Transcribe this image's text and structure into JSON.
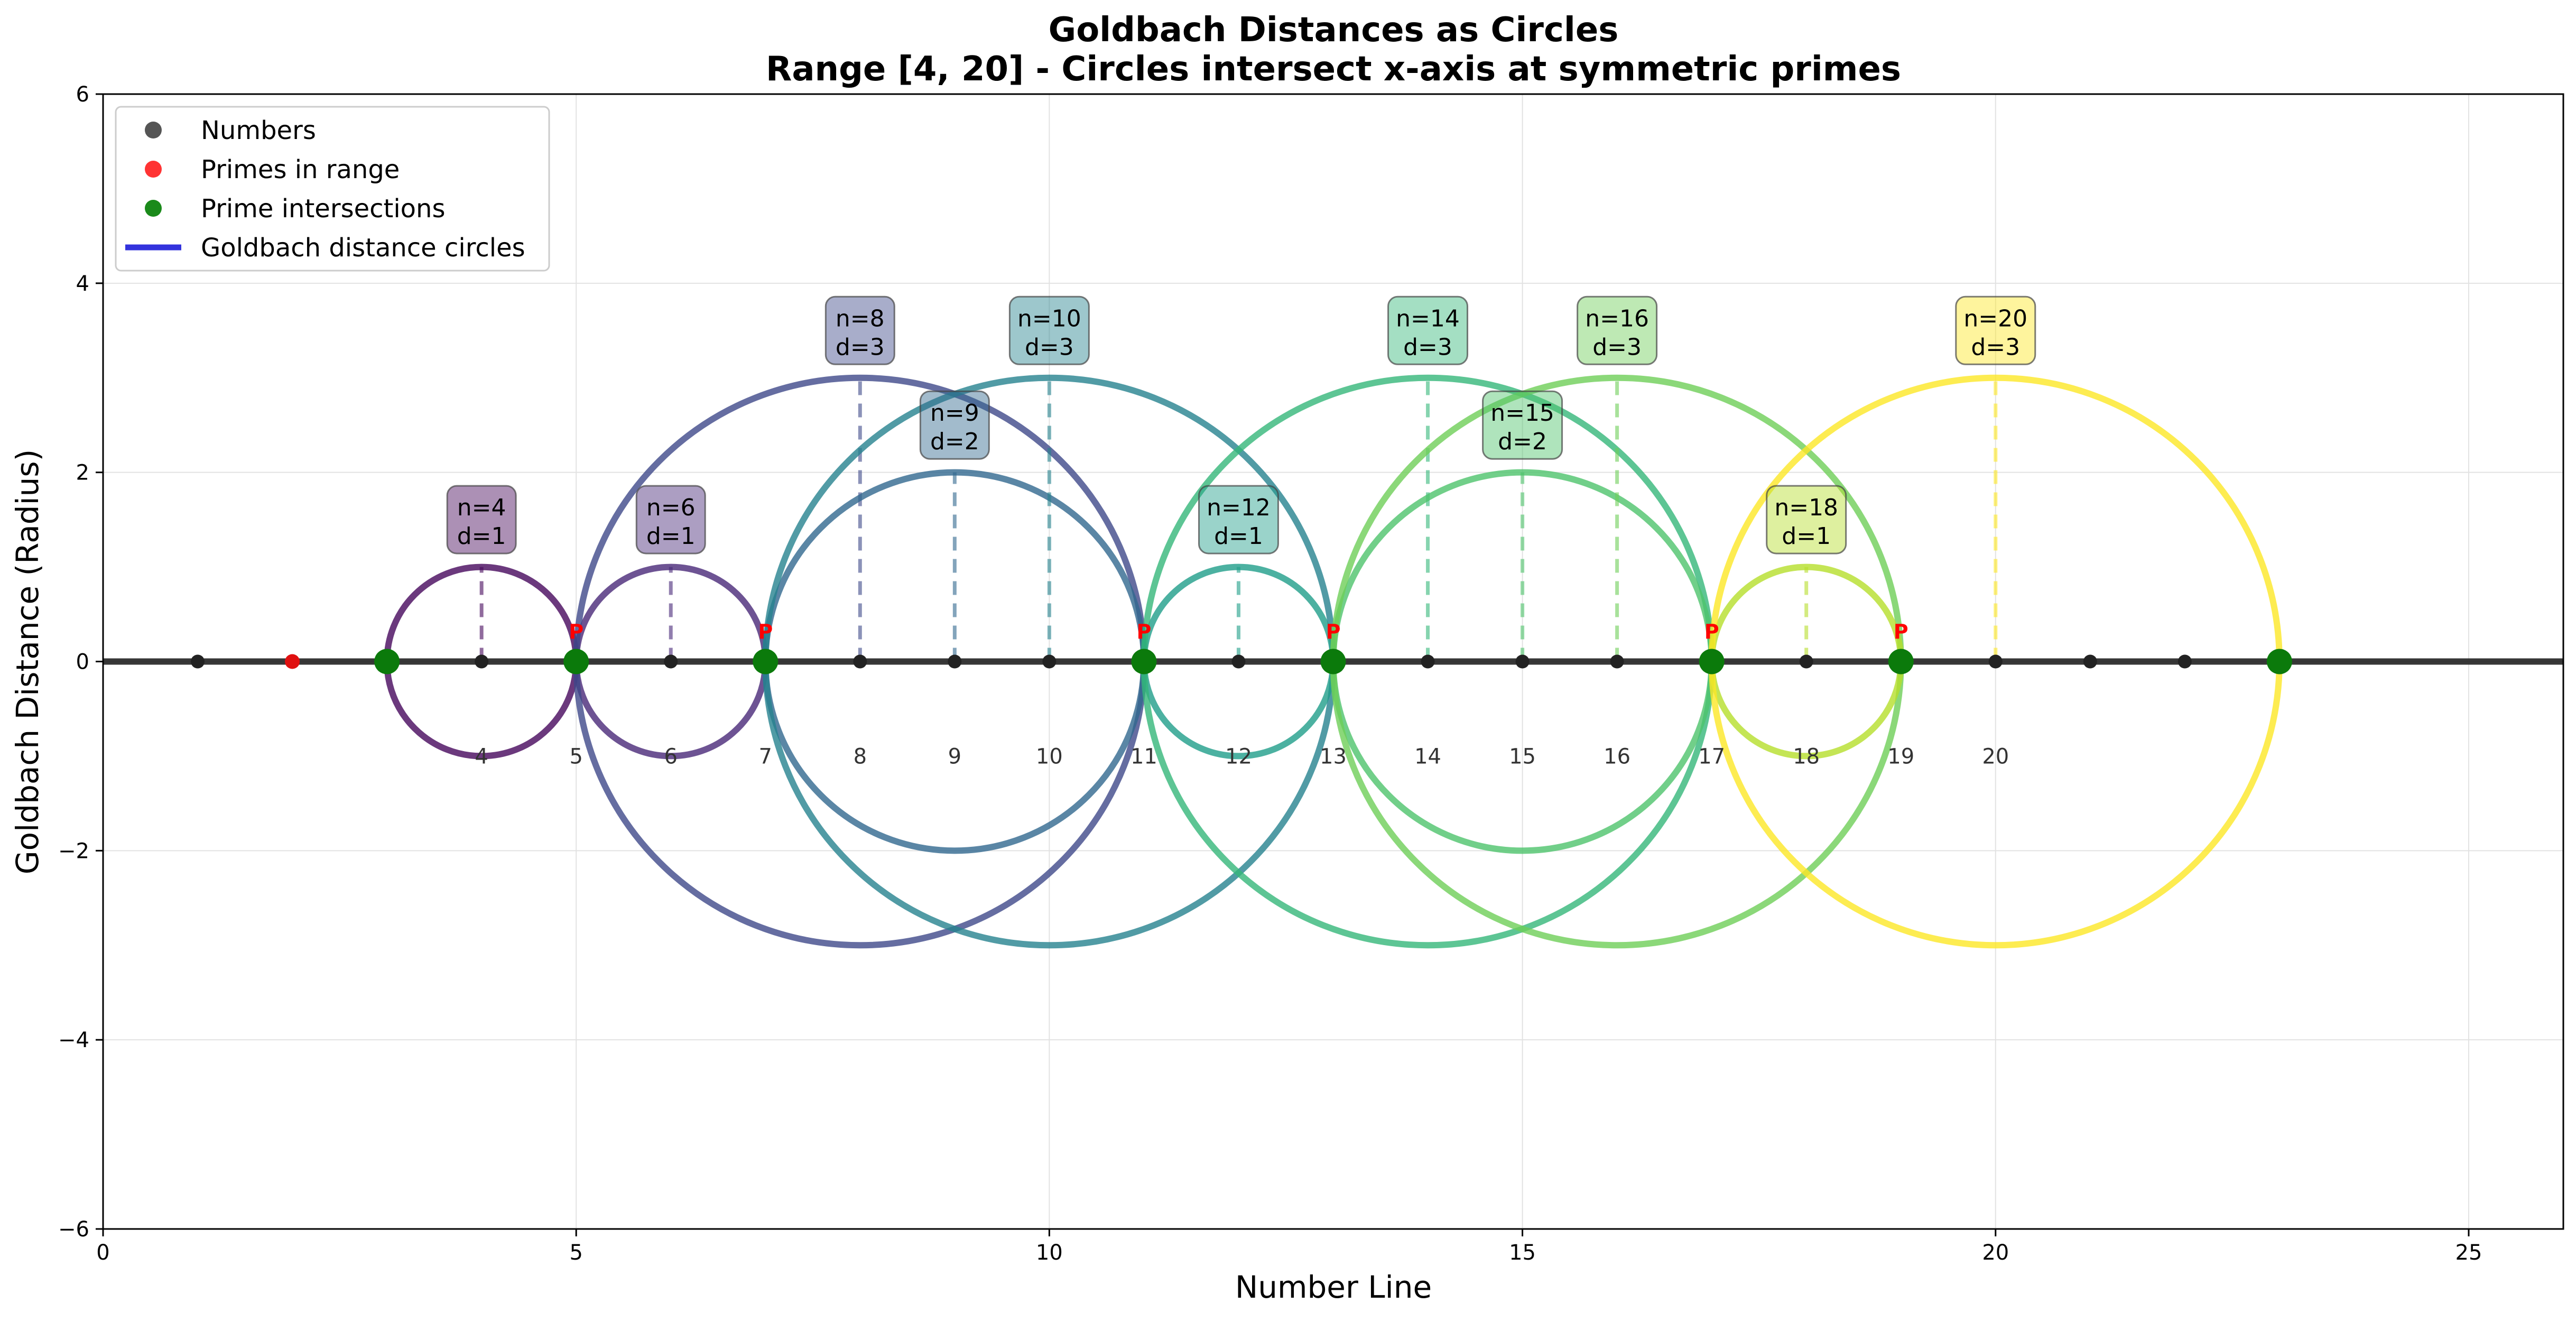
{
  "chart_data": {
    "type": "scatter",
    "title": "Goldbach Distances as Circles",
    "subtitle": "Range [4, 20] - Circles intersect x-axis at symmetric primes",
    "xlabel": "Number Line",
    "ylabel": "Goldbach Distance (Radius)",
    "xlim": [
      0,
      26
    ],
    "ylim": [
      -6,
      6
    ],
    "x_ticks": [
      0,
      5,
      10,
      15,
      20,
      25
    ],
    "y_ticks": [
      -6,
      -4,
      -2,
      0,
      2,
      4,
      6
    ],
    "y_tick_labels": [
      "−6",
      "−4",
      "−2",
      "0",
      "2",
      "4",
      "6"
    ],
    "grid": true,
    "legend_position": "upper-left",
    "legend": [
      {
        "label": "Numbers",
        "marker": "dot",
        "color": "#555555"
      },
      {
        "label": "Primes in range",
        "marker": "dot",
        "color": "#ff3333"
      },
      {
        "label": "Prime intersections",
        "marker": "dot",
        "color": "#1a8a1a"
      },
      {
        "label": "Goldbach distance circles",
        "marker": "line",
        "color": "#3333dd"
      }
    ],
    "numbers": [
      1,
      4,
      6,
      8,
      9,
      10,
      12,
      14,
      15,
      16,
      18,
      20,
      21,
      22
    ],
    "primes_in_range": [
      2
    ],
    "prime_intersections": [
      3,
      5,
      7,
      11,
      13,
      17,
      19,
      23
    ],
    "prime_markers": [
      5,
      7,
      11,
      13,
      17,
      19
    ],
    "prime_marker_label": "P",
    "number_labels": [
      "4",
      "5",
      "6",
      "7",
      "8",
      "9",
      "10",
      "11",
      "12",
      "13",
      "14",
      "15",
      "16",
      "17",
      "18",
      "19",
      "20"
    ],
    "circles": [
      {
        "n": 4,
        "d": 1,
        "label": "n=4",
        "dlabel": "d=1",
        "color": "#46085c"
      },
      {
        "n": 6,
        "d": 1,
        "label": "n=6",
        "dlabel": "d=1",
        "color": "#482878"
      },
      {
        "n": 8,
        "d": 3,
        "label": "n=8",
        "dlabel": "d=3",
        "color": "#3e4989"
      },
      {
        "n": 9,
        "d": 2,
        "label": "n=9",
        "dlabel": "d=2",
        "color": "#31688e"
      },
      {
        "n": 10,
        "d": 3,
        "label": "n=10",
        "dlabel": "d=3",
        "color": "#26828e"
      },
      {
        "n": 12,
        "d": 1,
        "label": "n=12",
        "dlabel": "d=1",
        "color": "#1f9e89"
      },
      {
        "n": 14,
        "d": 3,
        "label": "n=14",
        "dlabel": "d=3",
        "color": "#35b779"
      },
      {
        "n": 15,
        "d": 2,
        "label": "n=15",
        "dlabel": "d=2",
        "color": "#4ec36b"
      },
      {
        "n": 16,
        "d": 3,
        "label": "n=16",
        "dlabel": "d=3",
        "color": "#6ece58"
      },
      {
        "n": 18,
        "d": 1,
        "label": "n=18",
        "dlabel": "d=1",
        "color": "#b5de2b"
      },
      {
        "n": 20,
        "d": 3,
        "label": "n=20",
        "dlabel": "d=3",
        "color": "#fde725"
      }
    ]
  }
}
